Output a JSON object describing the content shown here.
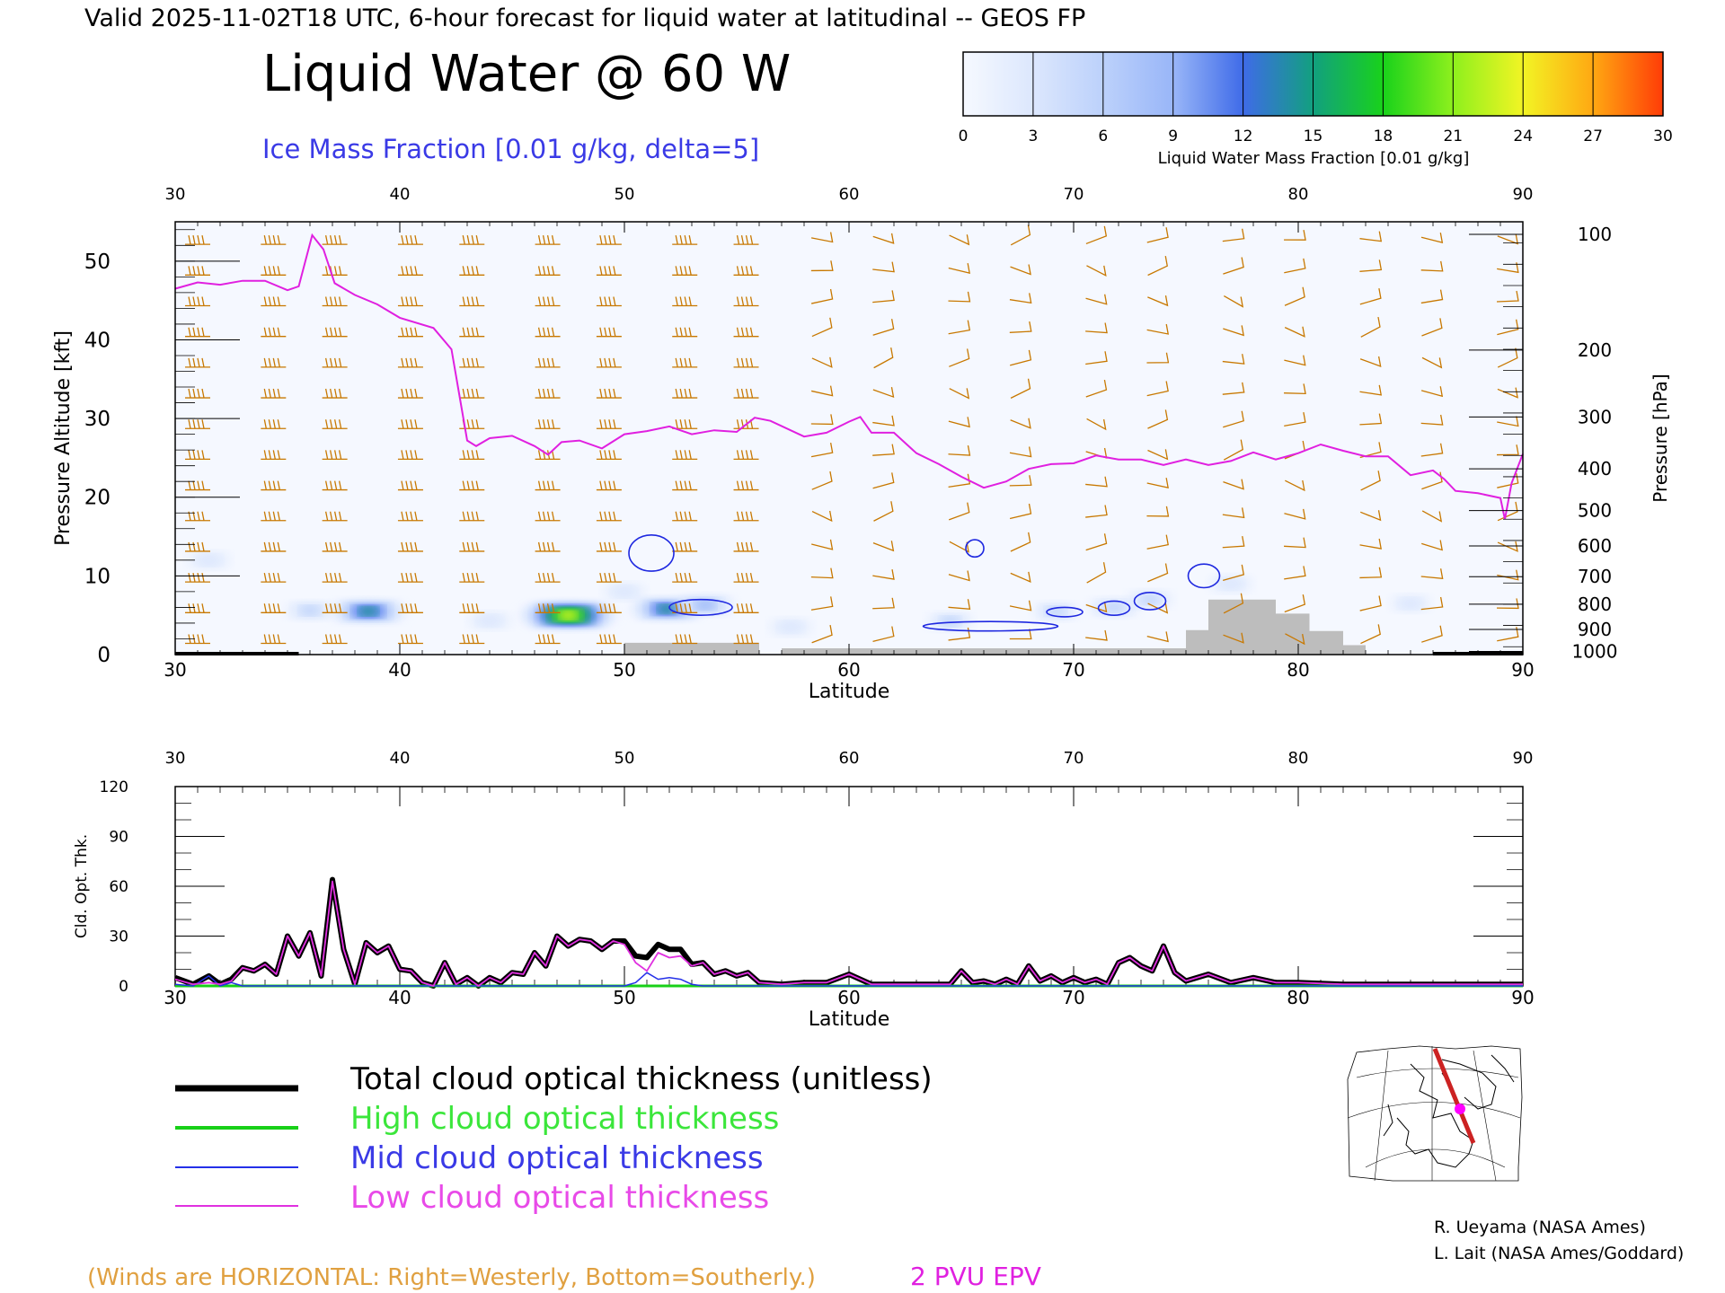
{
  "header": {
    "valid_line": "Valid 2025-11-02T18 UTC, 6-hour forecast for liquid water at latitudinal -- GEOS FP",
    "title": "Liquid Water @ 60 W",
    "subtitle": "Ice Mass Fraction [0.01 g/kg, delta=5]"
  },
  "colorbar": {
    "label": "Liquid Water Mass Fraction [0.01 g/kg]",
    "ticks": [
      "0",
      "3",
      "6",
      "9",
      "12",
      "15",
      "18",
      "21",
      "24",
      "27",
      "30"
    ],
    "colors": [
      "#f6f9ff",
      "#dce7fd",
      "#bcd1fb",
      "#99b6f8",
      "#3f6be8",
      "#12a07f",
      "#19d21b",
      "#8ef01d",
      "#f2f424",
      "#ffa812",
      "#ff3c07"
    ]
  },
  "colors": {
    "wind_barbs": "#c87800",
    "pvu_line": "#e020e0",
    "ice_contour": "#1e28e0",
    "terrain": "#bdbdbd",
    "total": "#000000",
    "high": "#18d018",
    "mid": "#2430e8",
    "low": "#e030e0"
  },
  "chart_data": [
    {
      "type": "heatmap",
      "title": "Liquid Water @ 60 W",
      "xlabel": "Latitude",
      "ylabel": "Pressure Altitude [kft]",
      "ylabel_right": "Pressure [hPa]",
      "xlim": [
        30,
        90
      ],
      "ylim": [
        0,
        55
      ],
      "x_ticks": [
        "30",
        "40",
        "50",
        "60",
        "70",
        "80",
        "90"
      ],
      "y_ticks": [
        "0",
        "10",
        "20",
        "30",
        "40",
        "50"
      ],
      "pressure_ticks": [
        "100",
        "200",
        "300",
        "400",
        "500",
        "600",
        "700",
        "800",
        "900",
        "1000"
      ],
      "pressure_tick_kft": [
        53.4,
        38.7,
        30.2,
        23.6,
        18.3,
        13.8,
        9.9,
        6.4,
        3.2,
        0.4
      ],
      "liquid_water_blobs": [
        {
          "lat": 38.6,
          "kft": 5.5,
          "value": 16
        },
        {
          "lat": 47.5,
          "kft": 5.0,
          "value": 23
        },
        {
          "lat": 51.9,
          "kft": 5.8,
          "value": 15
        },
        {
          "lat": 53.6,
          "kft": 6.3,
          "value": 10
        },
        {
          "lat": 36.0,
          "kft": 5.6,
          "value": 6
        },
        {
          "lat": 44.0,
          "kft": 4.3,
          "value": 4
        },
        {
          "lat": 57.4,
          "kft": 3.5,
          "value": 4
        },
        {
          "lat": 64.5,
          "kft": 4.2,
          "value": 5
        },
        {
          "lat": 69.2,
          "kft": 5.5,
          "value": 5
        },
        {
          "lat": 71.8,
          "kft": 6.0,
          "value": 7
        },
        {
          "lat": 73.4,
          "kft": 7.0,
          "value": 5
        },
        {
          "lat": 77.0,
          "kft": 9.0,
          "value": 4
        },
        {
          "lat": 31.5,
          "kft": 12.0,
          "value": 4
        },
        {
          "lat": 50.0,
          "kft": 8.0,
          "value": 4
        },
        {
          "lat": 85.0,
          "kft": 6.5,
          "value": 3
        }
      ],
      "pvu_2_line": [
        [
          30,
          46.5
        ],
        [
          31,
          47.3
        ],
        [
          32,
          47.0
        ],
        [
          33,
          47.5
        ],
        [
          34,
          47.5
        ],
        [
          35,
          46.3
        ],
        [
          35.5,
          46.8
        ],
        [
          36.1,
          53.3
        ],
        [
          36.6,
          51.5
        ],
        [
          37.1,
          47.2
        ],
        [
          38,
          45.7
        ],
        [
          39,
          44.5
        ],
        [
          40,
          42.8
        ],
        [
          41.5,
          41.5
        ],
        [
          42.3,
          38.8
        ],
        [
          43,
          27.2
        ],
        [
          43.4,
          26.5
        ],
        [
          44,
          27.5
        ],
        [
          45,
          27.8
        ],
        [
          46,
          26.5
        ],
        [
          46.6,
          25.4
        ],
        [
          47.2,
          27.0
        ],
        [
          48,
          27.2
        ],
        [
          49,
          26.2
        ],
        [
          50,
          28.0
        ],
        [
          51,
          28.4
        ],
        [
          52,
          29.0
        ],
        [
          53,
          28.0
        ],
        [
          54,
          28.5
        ],
        [
          55,
          28.3
        ],
        [
          55.8,
          30.1
        ],
        [
          56.5,
          29.7
        ],
        [
          58,
          27.7
        ],
        [
          59,
          28.2
        ],
        [
          60,
          29.6
        ],
        [
          60.5,
          30.2
        ],
        [
          61,
          28.2
        ],
        [
          62,
          28.2
        ],
        [
          63,
          25.6
        ],
        [
          64,
          24.2
        ],
        [
          65,
          22.6
        ],
        [
          66,
          21.2
        ],
        [
          67,
          22.0
        ],
        [
          68,
          23.6
        ],
        [
          69,
          24.2
        ],
        [
          70,
          24.3
        ],
        [
          71,
          25.3
        ],
        [
          72,
          24.8
        ],
        [
          73,
          24.8
        ],
        [
          74,
          24.1
        ],
        [
          75,
          24.8
        ],
        [
          76,
          24.1
        ],
        [
          77,
          24.6
        ],
        [
          78,
          25.7
        ],
        [
          79,
          24.8
        ],
        [
          80,
          25.6
        ],
        [
          81,
          26.7
        ],
        [
          82,
          25.9
        ],
        [
          83,
          25.2
        ],
        [
          84,
          25.2
        ],
        [
          85,
          22.8
        ],
        [
          86,
          23.4
        ],
        [
          86.5,
          22.3
        ],
        [
          87,
          20.8
        ],
        [
          88,
          20.5
        ],
        [
          89,
          19.9
        ],
        [
          89.2,
          17.2
        ],
        [
          89.5,
          21.8
        ],
        [
          90,
          25.5
        ]
      ],
      "terrain": [
        [
          30,
          0
        ],
        [
          50,
          0
        ],
        [
          50,
          1.5
        ],
        [
          56,
          1.5
        ],
        [
          56,
          0
        ],
        [
          57,
          0
        ],
        [
          57,
          0.8
        ],
        [
          75,
          0.8
        ],
        [
          75,
          3.1
        ],
        [
          76,
          3.1
        ],
        [
          76,
          7.0
        ],
        [
          79,
          7.0
        ],
        [
          79,
          5.2
        ],
        [
          80.5,
          5.2
        ],
        [
          80.5,
          3.0
        ],
        [
          82,
          3.0
        ],
        [
          82,
          1.2
        ],
        [
          83,
          1.2
        ],
        [
          83,
          0
        ],
        [
          90,
          0
        ]
      ],
      "ice_contours": [
        {
          "lat": 51.2,
          "kft": 12.9,
          "rx": 1.0,
          "ry": 2.3
        },
        {
          "lat": 53.4,
          "kft": 6.0,
          "rx": 1.4,
          "ry": 1.0
        },
        {
          "lat": 65.6,
          "kft": 13.5,
          "rx": 0.4,
          "ry": 1.1
        },
        {
          "lat": 66.3,
          "kft": 3.6,
          "rx": 3.0,
          "ry": 0.6
        },
        {
          "lat": 69.6,
          "kft": 5.4,
          "rx": 0.8,
          "ry": 0.6
        },
        {
          "lat": 71.8,
          "kft": 5.9,
          "rx": 0.7,
          "ry": 0.9
        },
        {
          "lat": 73.4,
          "kft": 6.8,
          "rx": 0.7,
          "ry": 1.1
        },
        {
          "lat": 75.8,
          "kft": 10.0,
          "rx": 0.7,
          "ry": 1.5
        }
      ],
      "winds_note": "(Winds are HORIZONTAL: Right=Westerly, Bottom=Southerly.)",
      "pvu_label": "2 PVU EPV"
    },
    {
      "type": "line",
      "xlabel": "Latitude",
      "ylabel": "Cld. Opt. Thk.",
      "xlim": [
        30,
        90
      ],
      "ylim": [
        0,
        120
      ],
      "x_ticks": [
        "30",
        "40",
        "50",
        "60",
        "70",
        "80",
        "90"
      ],
      "y_ticks": [
        "0",
        "30",
        "60",
        "90",
        "120"
      ],
      "x": [
        30,
        30.8,
        31.5,
        32,
        32.5,
        33,
        33.5,
        34,
        34.5,
        35,
        35.5,
        36,
        36.5,
        37,
        37.5,
        38,
        38.5,
        39,
        39.5,
        40,
        40.5,
        41,
        41.5,
        42,
        42.5,
        43,
        43.5,
        44,
        44.5,
        45,
        45.5,
        46,
        46.5,
        47,
        47.5,
        48,
        48.5,
        49,
        49.5,
        50,
        50.5,
        51,
        51.5,
        52,
        52.5,
        53,
        53.5,
        54,
        54.5,
        55,
        55.5,
        56,
        57,
        58,
        59,
        60,
        61,
        62,
        63,
        64,
        64.5,
        65,
        65.5,
        66,
        66.5,
        67,
        67.5,
        68,
        68.5,
        69,
        69.5,
        70,
        70.5,
        71,
        71.5,
        72,
        72.5,
        73,
        73.5,
        74,
        74.5,
        75,
        76,
        77,
        78,
        79,
        80,
        82,
        84,
        86,
        88,
        90
      ],
      "series": [
        {
          "name": "Total cloud optical thickness (unitless)",
          "values": [
            5,
            1,
            6,
            1,
            4,
            11,
            9,
            13,
            7,
            30,
            18,
            32,
            6,
            64,
            22,
            1,
            26,
            20,
            24,
            10,
            9,
            2,
            0,
            14,
            1,
            5,
            0,
            5,
            2,
            8,
            7,
            20,
            12,
            30,
            24,
            28,
            27,
            22,
            27,
            27,
            18,
            17,
            25,
            22,
            22,
            13,
            14,
            7,
            9,
            6,
            8,
            2,
            1,
            2,
            2,
            7,
            1,
            1,
            1,
            1,
            1,
            9,
            2,
            3,
            1,
            4,
            1,
            12,
            3,
            6,
            2,
            5,
            2,
            4,
            1,
            14,
            17,
            12,
            9,
            24,
            8,
            3,
            7,
            2,
            5,
            2,
            2,
            1,
            1,
            1,
            1,
            1
          ]
        },
        {
          "name": "High cloud optical thickness",
          "values": [
            0,
            0,
            0,
            0,
            0,
            0,
            0,
            0,
            0,
            0,
            0,
            0,
            0,
            0,
            0,
            0,
            0,
            0,
            0,
            0,
            0,
            0,
            0,
            0,
            0,
            0,
            0,
            0,
            0,
            0,
            0,
            0,
            0,
            0,
            0,
            0,
            0,
            0,
            0,
            0,
            0,
            0,
            0,
            0,
            0,
            0,
            0,
            0,
            0,
            0,
            0,
            0,
            0,
            0,
            0,
            0,
            0,
            0,
            0,
            0,
            0,
            0,
            0,
            0,
            0,
            0,
            0,
            0,
            0,
            0,
            0,
            0,
            0,
            0,
            0,
            0,
            0,
            0,
            0,
            0,
            0,
            0,
            0,
            0,
            0,
            0,
            0,
            0,
            0,
            0,
            0,
            0
          ]
        },
        {
          "name": "Mid cloud optical thickness",
          "values": [
            1,
            0,
            6,
            0,
            2,
            0,
            0,
            0,
            0,
            0,
            0,
            0,
            0,
            0,
            0,
            0,
            0,
            0,
            0,
            0,
            0,
            0,
            0,
            0,
            0,
            0,
            0,
            0,
            0,
            0,
            0,
            0,
            0,
            0,
            0,
            0,
            0,
            0,
            0,
            0,
            2,
            8,
            4,
            5,
            4,
            1,
            0,
            0,
            0,
            0,
            0,
            0,
            0,
            0,
            0,
            0,
            0,
            0,
            0,
            0,
            0,
            0,
            0,
            0,
            0,
            0,
            0,
            0,
            0,
            0,
            0,
            0,
            0,
            0,
            0,
            0,
            0,
            0,
            0,
            0,
            0,
            0,
            0,
            0,
            0,
            0,
            0,
            0,
            0,
            0,
            0,
            0
          ]
        },
        {
          "name": "Low cloud optical thickness",
          "values": [
            4,
            1,
            2,
            1,
            3,
            11,
            9,
            13,
            7,
            30,
            18,
            32,
            6,
            63,
            22,
            1,
            26,
            20,
            24,
            10,
            9,
            2,
            0,
            14,
            1,
            5,
            0,
            5,
            2,
            8,
            7,
            20,
            12,
            30,
            24,
            28,
            27,
            22,
            27,
            25,
            14,
            9,
            20,
            17,
            18,
            12,
            14,
            7,
            9,
            6,
            8,
            2,
            1,
            2,
            2,
            7,
            1,
            1,
            1,
            1,
            1,
            9,
            2,
            3,
            1,
            4,
            1,
            12,
            3,
            6,
            2,
            5,
            2,
            4,
            1,
            14,
            17,
            12,
            9,
            24,
            8,
            3,
            7,
            2,
            5,
            2,
            2,
            1,
            1,
            1,
            1,
            1
          ]
        }
      ]
    }
  ],
  "legend": [
    {
      "label": "Total cloud optical thickness (unitless)",
      "color": "#000000"
    },
    {
      "label": "High cloud optical thickness",
      "color": "#18d018"
    },
    {
      "label": "Mid cloud optical thickness",
      "color": "#2430e8"
    },
    {
      "label": "Low cloud optical thickness",
      "color": "#e030e0"
    }
  ],
  "credits": [
    "R. Ueyama (NASA Ames)",
    "L. Lait (NASA Ames/Goddard)"
  ]
}
